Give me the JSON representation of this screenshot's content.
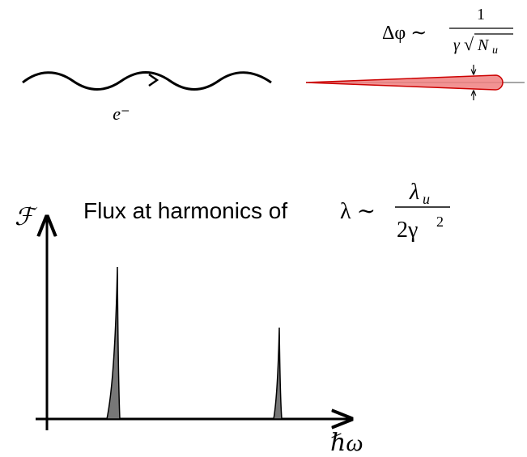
{
  "top": {
    "electron_label": "e⁻",
    "divergence": {
      "lhs": "Δφ ∼",
      "numerator": "1",
      "denominator_gamma": "γ",
      "denominator_root": "√",
      "denominator_n": "N",
      "denominator_sub": "u"
    }
  },
  "spectrum": {
    "title": "Flux at harmonics of",
    "relation": "λ ∼",
    "numerator": "λ",
    "numerator_sub": "u",
    "denominator": "2γ",
    "denominator_sup": "2",
    "y_axis_label": "ℱ",
    "x_axis_label": "ℏω"
  }
}
